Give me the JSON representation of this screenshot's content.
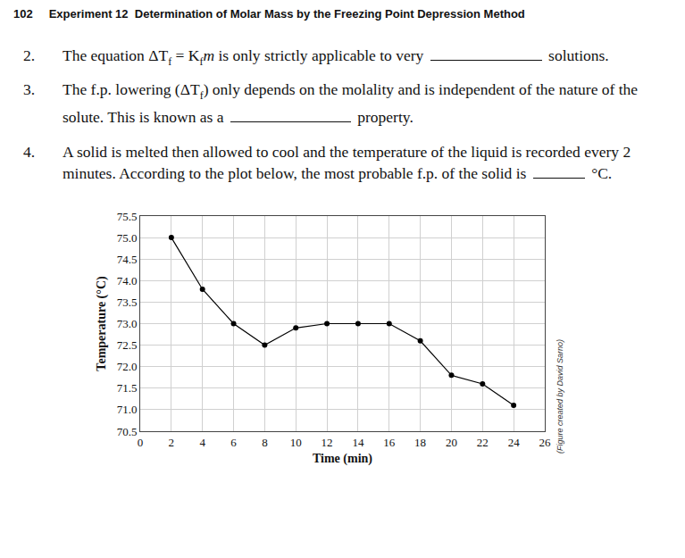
{
  "header": {
    "page": "102",
    "title": "Experiment 12  Determination of Molar Mass by the Freezing Point Depression Method"
  },
  "questions": [
    {
      "number": "2.",
      "segments": [
        "The equation ΔT",
        {
          "sub": "f"
        },
        " = K",
        {
          "sub": "f"
        },
        {
          "italic": "m"
        },
        " is only strictly applicable to very ",
        {
          "blank": true
        },
        " solutions."
      ]
    },
    {
      "number": "3.",
      "segments": [
        "The f.p. lowering (ΔT",
        {
          "sub": "f"
        },
        ") only depends on the molality and is independent of the nature of the solute. This is known as a ",
        {
          "blank": true
        },
        " property."
      ]
    },
    {
      "number": "4.",
      "segments": [
        "A solid is melted then allowed to cool and the temperature of the liquid is recorded every 2 minutes. According to the plot below, the most probable f.p. of the solid is ",
        {
          "blank": true
        },
        " °C."
      ]
    }
  ],
  "chart_data": {
    "type": "line",
    "x_label": "Time (min)",
    "y_label": "Temperature (°C)",
    "x": [
      2,
      4,
      6,
      8,
      10,
      12,
      14,
      16,
      18,
      20,
      22,
      24
    ],
    "values": [
      75.0,
      73.8,
      73.0,
      72.5,
      72.9,
      73.0,
      73.0,
      73.0,
      72.6,
      71.8,
      71.6,
      71.1
    ],
    "color": "#000000",
    "marker": "circle",
    "xlim": [
      0,
      26
    ],
    "xticks": [
      0,
      2,
      4,
      6,
      8,
      10,
      12,
      14,
      16,
      18,
      20,
      22,
      24,
      26
    ],
    "ylim": [
      70.5,
      75.5
    ],
    "yticks": [
      70.5,
      {
        "value": 71,
        "label": "71.0"
      },
      71.5,
      {
        "value": 72,
        "label": "72.0"
      },
      72.5,
      {
        "value": 73,
        "label": "73.0"
      },
      73.5,
      {
        "value": 74,
        "label": "74.0"
      },
      74.5,
      {
        "value": 75,
        "label": "75.0"
      },
      75.5
    ],
    "grid": true
  },
  "credit": "(Figure created by David Sarno)"
}
